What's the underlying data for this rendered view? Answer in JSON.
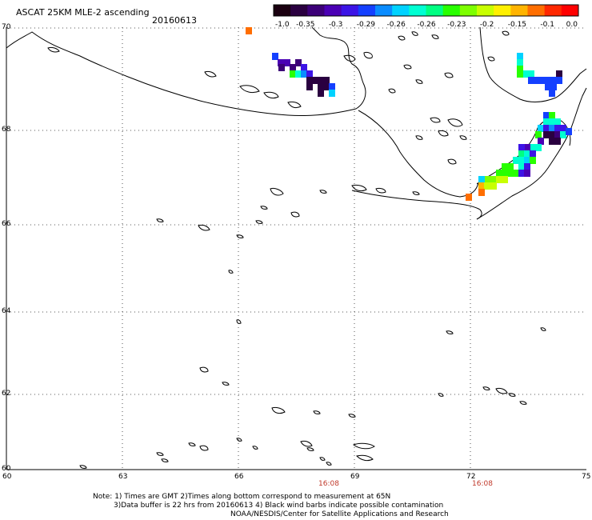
{
  "header": {
    "title": "ASCAT 25KM MLE-2 ascending",
    "date": "20160613"
  },
  "colorbar": {
    "tick_labels": [
      "-1.0",
      "-0.35",
      "-0.3",
      "-0.29",
      "-0.26",
      "-0.26",
      "-0.23",
      "-0.2",
      "-0.15",
      "-0.1",
      "0.0"
    ],
    "colors": [
      "#1a0010",
      "#2a0040",
      "#3c0078",
      "#4a00b4",
      "#3c14e6",
      "#1440ff",
      "#0a8cff",
      "#00d2ff",
      "#00ffd2",
      "#00ff82",
      "#28ff00",
      "#7dff00",
      "#c8ff00",
      "#fff000",
      "#ffb400",
      "#ff6e00",
      "#ff2800",
      "#ff0000"
    ]
  },
  "map": {
    "lat_labels": [
      "70",
      "68",
      "66",
      "64",
      "62",
      "60"
    ],
    "lon_labels": [
      "60",
      "63",
      "66",
      "69",
      "72",
      "75"
    ],
    "time_labels": [
      "16:08",
      "16:08"
    ],
    "legend_note": "Black wind barbs indicate possible contamination"
  },
  "notes": {
    "line1": "Note: 1) Times are GMT 2)Times along bottom correspond to measurement at 65N",
    "line2": "3)Data buffer is 22 hrs from 20160613 4) Black wind barbs indicate possible contamination",
    "line3": "NOAA/NESDIS/Center for Satellite Applications and Research"
  }
}
